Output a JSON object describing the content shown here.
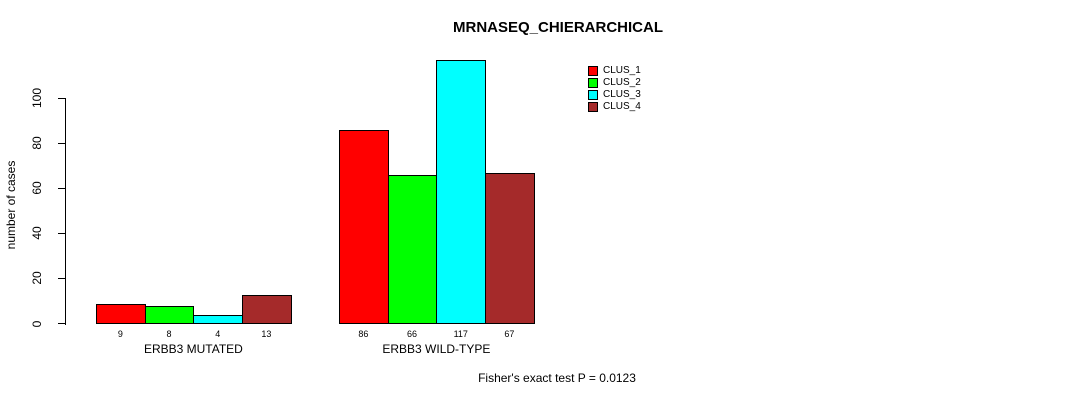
{
  "title": "MRNASEQ_CHIERARCHICAL",
  "footer": "Fisher's exact test P = 0.0123",
  "chart_data": {
    "type": "bar",
    "title": "MRNASEQ_CHIERARCHICAL",
    "xlabel": "",
    "ylabel": "number of cases",
    "ylim": [
      0,
      100
    ],
    "yticks": [
      0,
      20,
      40,
      60,
      80,
      100
    ],
    "grid": false,
    "legend_position": "top-right",
    "series": [
      {
        "name": "CLUS_1",
        "color": "#FF0000"
      },
      {
        "name": "CLUS_2",
        "color": "#00FF00"
      },
      {
        "name": "CLUS_3",
        "color": "#00FFFF"
      },
      {
        "name": "CLUS_4",
        "color": "#A52A2A"
      }
    ],
    "groups": [
      {
        "label": "ERBB3 MUTATED",
        "values": [
          9,
          8,
          4,
          13
        ]
      },
      {
        "label": "ERBB3 WILD-TYPE",
        "values": [
          86,
          66,
          117,
          67
        ]
      }
    ],
    "bar_value_labels_shown": true,
    "annotation": "Fisher's exact test P = 0.0123"
  }
}
